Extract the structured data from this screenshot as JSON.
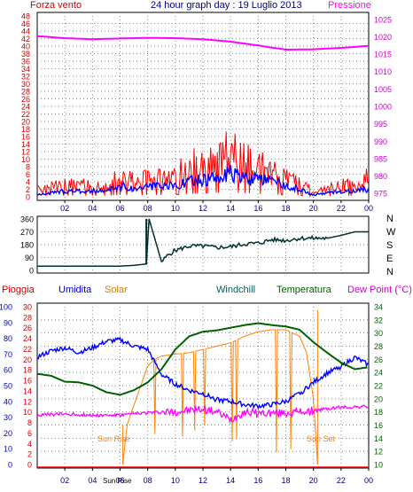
{
  "header": {
    "left": "Forza vento",
    "center": "24 hour graph day : 19 Luglio 2013",
    "right": "Pressione"
  },
  "bottom_header": {
    "pioggia": "Pioggia",
    "umidita": "Umidita",
    "solar": "Solar",
    "windchill": "Windchill",
    "temperatura": "Temperatura",
    "dewpoint": "Dew Point (°C)"
  },
  "direction_labels": [
    "N",
    "W",
    "S",
    "E",
    "N"
  ],
  "sun_labels": {
    "rise": "Sun Rise",
    "set": "Sun Set",
    "axis": "Sun Rise"
  },
  "colors": {
    "red": "#ff0000",
    "blue": "#0000ff",
    "magenta": "#ff00ff",
    "green": "#008000",
    "dark_green": "#006000",
    "navy": "#000080",
    "orange": "#ff8000",
    "dirline": "#003030"
  },
  "chart_data": [
    {
      "type": "line",
      "title": "24 hour graph day : 19 Luglio 2013",
      "x_ticks": [
        "02",
        "04",
        "06",
        "08",
        "10",
        "12",
        "14",
        "16",
        "18",
        "20",
        "22",
        "00"
      ],
      "y_left_label": "Forza vento",
      "y_left_ticks": [
        0,
        2,
        4,
        6,
        8,
        10,
        12,
        14,
        16,
        18,
        20,
        22,
        24,
        26,
        28,
        30,
        32,
        34,
        36,
        38,
        40,
        42,
        44,
        46,
        48
      ],
      "y_left_range": [
        0,
        48
      ],
      "y_right_label": "Pressione",
      "y_right_ticks": [
        975,
        980,
        985,
        990,
        995,
        1000,
        1005,
        1010,
        1015,
        1020,
        1025
      ],
      "y_right_range": [
        973,
        1027
      ],
      "series": [
        {
          "name": "Pressione",
          "axis": "right",
          "x": [
            0,
            2,
            4,
            6,
            8,
            10,
            12,
            14,
            16,
            18,
            20,
            22,
            24
          ],
          "values": [
            1020.2,
            1019.6,
            1019.3,
            1019.5,
            1019.7,
            1019.6,
            1019.3,
            1018.6,
            1017.5,
            1016.3,
            1016.4,
            1016.8,
            1017.4
          ]
        },
        {
          "name": "wind gust",
          "axis": "left",
          "x": [
            0,
            1,
            2,
            3,
            4,
            5,
            6,
            7,
            8,
            9,
            10,
            11,
            12,
            13,
            14,
            15,
            16,
            17,
            18,
            19,
            20,
            21,
            22,
            23,
            24
          ],
          "values": [
            2,
            3,
            3,
            3,
            3,
            3,
            5,
            4,
            5,
            5,
            6,
            7,
            10,
            11,
            12,
            10,
            8,
            6,
            5,
            4,
            1,
            2,
            3,
            3,
            5
          ]
        },
        {
          "name": "wind avg",
          "axis": "left",
          "x": [
            0,
            1,
            2,
            3,
            4,
            5,
            6,
            7,
            8,
            9,
            10,
            11,
            12,
            13,
            14,
            15,
            16,
            17,
            18,
            19,
            20,
            21,
            22,
            23,
            24
          ],
          "values": [
            0.5,
            1,
            1.5,
            1.5,
            1.5,
            1.5,
            3,
            2,
            3,
            2.5,
            3,
            4,
            4.5,
            5,
            6,
            5,
            4.5,
            4,
            3,
            2,
            0.5,
            1,
            1.5,
            1.5,
            2
          ]
        }
      ]
    },
    {
      "type": "line",
      "title": "",
      "y_left_ticks": [
        0,
        90,
        180,
        270,
        360
      ],
      "y_left_range": [
        0,
        360
      ],
      "series": [
        {
          "name": "direction",
          "x": [
            0,
            2,
            4,
            6,
            7,
            7.9,
            8.1,
            9,
            9.5,
            10,
            11,
            12,
            13,
            14,
            15,
            16,
            17,
            18,
            19,
            20,
            21,
            22,
            23,
            24
          ],
          "values": [
            30,
            30,
            30,
            30,
            35,
            45,
            360,
            60,
            110,
            140,
            170,
            170,
            160,
            165,
            185,
            190,
            215,
            210,
            225,
            225,
            225,
            245,
            270,
            270
          ]
        }
      ]
    },
    {
      "type": "line",
      "title": "",
      "x_ticks": [
        "02",
        "04",
        "06",
        "08",
        "10",
        "12",
        "14",
        "16",
        "18",
        "20",
        "22",
        "00"
      ],
      "y_umidita_ticks": [
        0,
        10,
        20,
        30,
        40,
        50,
        60,
        70,
        80,
        90,
        100
      ],
      "y_pioggia_ticks": [
        0,
        2,
        4,
        6,
        8,
        10,
        12,
        14,
        16,
        18,
        20,
        22,
        24,
        26,
        28,
        30
      ],
      "y_temp_ticks": [
        10,
        12,
        14,
        16,
        18,
        20,
        22,
        24,
        26,
        28,
        30,
        32,
        34
      ],
      "series": [
        {
          "name": "Umidita",
          "axis": "umidita",
          "x": [
            0,
            1,
            2,
            3,
            4,
            5,
            6,
            7,
            8,
            9,
            10,
            11,
            12,
            13,
            14,
            15,
            16,
            17,
            18,
            19,
            20,
            21,
            22,
            23,
            24
          ],
          "values": [
            68,
            72,
            74,
            71,
            74,
            78,
            79,
            75,
            73,
            57,
            51,
            47,
            45,
            41,
            40,
            38,
            37,
            38,
            40,
            45,
            52,
            58,
            62,
            68,
            63
          ]
        },
        {
          "name": "Temperatura",
          "axis": "temp",
          "x": [
            0,
            1,
            2,
            3,
            4,
            5,
            6,
            7,
            8,
            9,
            10,
            11,
            12,
            13,
            14,
            15,
            16,
            17,
            18,
            19,
            20,
            21,
            22,
            23,
            24
          ],
          "values": [
            23.8,
            23.5,
            22.6,
            22.5,
            22,
            21,
            20.6,
            21.3,
            22.5,
            24.5,
            27.5,
            29.5,
            30.2,
            30.4,
            30.8,
            31.2,
            31.5,
            31.2,
            31,
            30.5,
            28.6,
            27,
            25.5,
            24.5,
            24.8
          ]
        },
        {
          "name": "Dew Point",
          "axis": "temp",
          "x": [
            0,
            2,
            4,
            6,
            8,
            10,
            12,
            13,
            14,
            15,
            16,
            18,
            20,
            22,
            24
          ],
          "values": [
            17.5,
            17.7,
            17.5,
            17.5,
            17.9,
            18,
            18.4,
            18,
            16.8,
            18,
            17.8,
            17.8,
            18.2,
            18.7,
            18.8
          ]
        },
        {
          "name": "Solar",
          "axis": "temp",
          "x": [
            6.2,
            6.5,
            7,
            7.5,
            8,
            8.5,
            9,
            10,
            11,
            12,
            13,
            14,
            15,
            16,
            17,
            18,
            19,
            19.5,
            20,
            20.3
          ],
          "values": [
            10,
            16,
            19,
            22,
            25,
            26,
            26.5,
            26.8,
            27,
            27.5,
            28,
            28.5,
            29.5,
            30.2,
            30.5,
            30.5,
            29.5,
            27,
            20,
            10
          ]
        },
        {
          "name": "Pioggia",
          "axis": "pioggia",
          "x": [
            0,
            24
          ],
          "values": [
            0,
            0
          ]
        }
      ]
    }
  ]
}
